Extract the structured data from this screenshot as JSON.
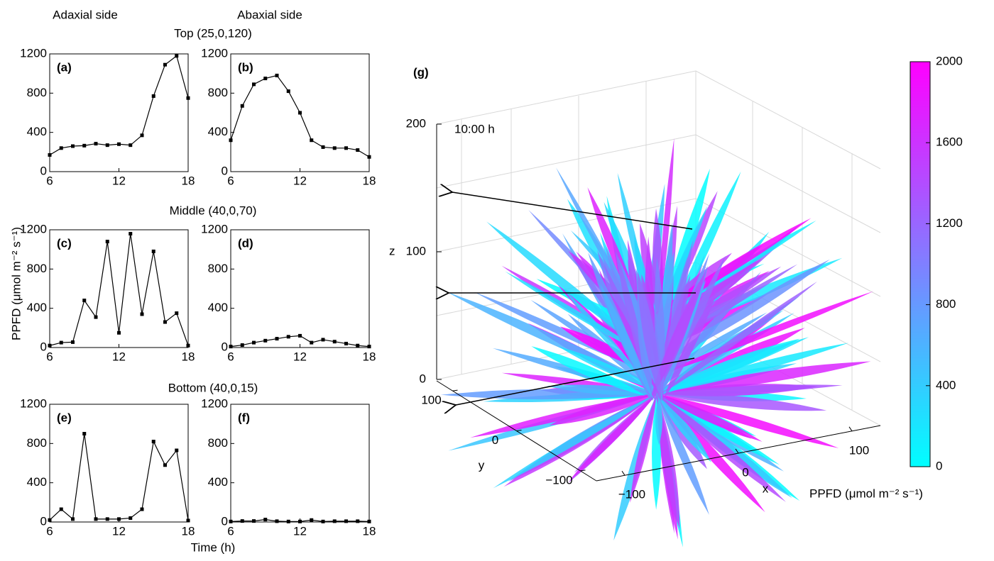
{
  "header": {
    "left": "Adaxial side",
    "right": "Abaxial side"
  },
  "rows": [
    "Top (25,0,120)",
    "Middle (40,0,70)",
    "Bottom (40,0,15)"
  ],
  "ylabel": "PPFD (μmol m⁻² s⁻¹)",
  "xlabel": "Time (h)",
  "chart_data": [
    {
      "type": "line",
      "label": "(a)",
      "color": "#000000",
      "x": [
        6,
        7,
        8,
        9,
        10,
        11,
        12,
        13,
        14,
        15,
        16,
        17,
        18
      ],
      "values": [
        170,
        240,
        260,
        265,
        285,
        270,
        280,
        270,
        370,
        770,
        1090,
        1180,
        750
      ],
      "xlim": [
        6,
        18
      ],
      "ylim": [
        0,
        1200
      ],
      "xticks": [
        6,
        12,
        18
      ],
      "yticks": [
        0,
        400,
        800,
        1200
      ]
    },
    {
      "type": "line",
      "label": "(b)",
      "color": "#000000",
      "x": [
        6,
        7,
        8,
        9,
        10,
        11,
        12,
        13,
        14,
        15,
        16,
        17,
        18
      ],
      "values": [
        320,
        670,
        890,
        950,
        980,
        820,
        600,
        320,
        250,
        240,
        240,
        220,
        150
      ],
      "xlim": [
        6,
        18
      ],
      "ylim": [
        0,
        1200
      ],
      "xticks": [
        6,
        12,
        18
      ],
      "yticks": [
        0,
        400,
        800,
        1200
      ]
    },
    {
      "type": "line",
      "label": "(c)",
      "color": "#000000",
      "x": [
        6,
        7,
        8,
        9,
        10,
        11,
        12,
        13,
        14,
        15,
        16,
        17,
        18
      ],
      "values": [
        20,
        50,
        55,
        480,
        310,
        1080,
        150,
        1160,
        340,
        980,
        260,
        350,
        20
      ],
      "xlim": [
        6,
        18
      ],
      "ylim": [
        0,
        1200
      ],
      "xticks": [
        6,
        12,
        18
      ],
      "yticks": [
        0,
        400,
        800,
        1200
      ]
    },
    {
      "type": "line",
      "label": "(d)",
      "color": "#000000",
      "x": [
        6,
        7,
        8,
        9,
        10,
        11,
        12,
        13,
        14,
        15,
        16,
        17,
        18
      ],
      "values": [
        10,
        25,
        50,
        70,
        90,
        110,
        120,
        50,
        80,
        60,
        40,
        20,
        10
      ],
      "xlim": [
        6,
        18
      ],
      "ylim": [
        0,
        1200
      ],
      "xticks": [
        6,
        12,
        18
      ],
      "yticks": [
        0,
        400,
        800,
        1200
      ]
    },
    {
      "type": "line",
      "label": "(e)",
      "color": "#000000",
      "x": [
        6,
        7,
        8,
        9,
        10,
        11,
        12,
        13,
        14,
        15,
        16,
        17,
        18
      ],
      "values": [
        20,
        130,
        30,
        900,
        30,
        30,
        30,
        40,
        130,
        820,
        580,
        730,
        15
      ],
      "xlim": [
        6,
        18
      ],
      "ylim": [
        0,
        1200
      ],
      "xticks": [
        6,
        12,
        18
      ],
      "yticks": [
        0,
        400,
        800,
        1200
      ]
    },
    {
      "type": "line",
      "label": "(f)",
      "color": "#000000",
      "x": [
        6,
        7,
        8,
        9,
        10,
        11,
        12,
        13,
        14,
        15,
        16,
        17,
        18
      ],
      "values": [
        5,
        10,
        10,
        25,
        8,
        5,
        5,
        20,
        5,
        8,
        8,
        8,
        5
      ],
      "xlim": [
        6,
        18
      ],
      "ylim": [
        0,
        1200
      ],
      "xticks": [
        6,
        12,
        18
      ],
      "yticks": [
        0,
        400,
        800,
        1200
      ]
    },
    {
      "type": "surface3d",
      "label": "(g)",
      "annotation": "10:00 h",
      "xlabel": "x",
      "ylabel": "y",
      "zlabel": "z",
      "xlim": [
        -125,
        125
      ],
      "ylim": [
        -125,
        125
      ],
      "zlim": [
        0,
        200
      ],
      "xticks": [
        {
          "value": -100,
          "label": "−100"
        },
        0,
        100
      ],
      "yticks": [
        {
          "value": -100,
          "label": "−100"
        },
        0,
        100
      ],
      "zticks": [
        0,
        100,
        200
      ],
      "colormap": [
        "#00ffff",
        "#ff00ff"
      ],
      "clim": [
        0,
        2000
      ],
      "cticks": [
        0,
        400,
        800,
        1200,
        1600,
        2000
      ],
      "colorbar_label": "PPFD (μmol m⁻² s⁻¹)"
    }
  ]
}
